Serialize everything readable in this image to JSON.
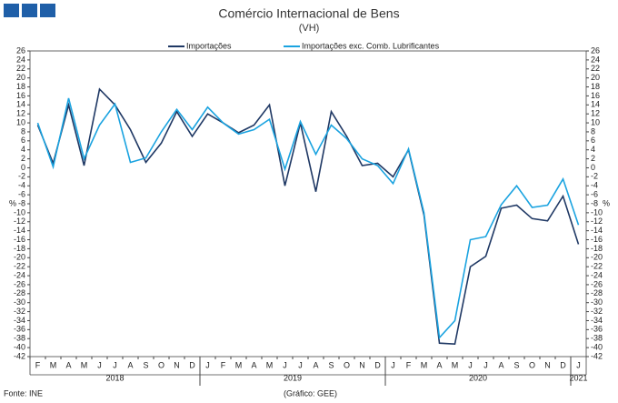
{
  "chart_data": {
    "type": "line",
    "title": "Comércio Internacional de Bens",
    "subtitle": "(VH)",
    "y_label": "%",
    "source": "Fonte: INE",
    "credit": "(Gráfico: GEE)",
    "categories": [
      "F",
      "M",
      "A",
      "M",
      "J",
      "J",
      "A",
      "S",
      "O",
      "N",
      "D",
      "J",
      "F",
      "M",
      "A",
      "M",
      "J",
      "J",
      "A",
      "S",
      "O",
      "N",
      "D",
      "J",
      "F",
      "M",
      "A",
      "M",
      "J",
      "J",
      "A",
      "S",
      "O",
      "N",
      "D",
      "J"
    ],
    "years": [
      "2018",
      "2019",
      "2020",
      "2021"
    ],
    "series": [
      {
        "name": "Importações",
        "color": "#1f3864",
        "values": [
          9.5,
          1,
          14,
          0.5,
          17.5,
          14,
          8.5,
          1.2,
          5.5,
          12.5,
          7,
          12,
          10,
          7.8,
          9.5,
          14,
          -4,
          10,
          -5.3,
          12.5,
          7,
          0.5,
          1,
          -2,
          4,
          -10.5,
          -39,
          -39.2,
          -22,
          -19.7,
          -9,
          -8.3,
          -11.3,
          -11.8,
          -6.3,
          -17
        ]
      },
      {
        "name": "Importações exc. Comb. Lubrificantes",
        "color": "#1aa3e0",
        "values": [
          10,
          0.2,
          15.5,
          2,
          9.5,
          14.2,
          1.2,
          2.2,
          8,
          13,
          8.5,
          13.5,
          10,
          7.5,
          8.5,
          10.8,
          -0.3,
          10.3,
          3,
          9.5,
          6.5,
          2,
          0.5,
          -3.5,
          4.2,
          -10,
          -37.8,
          -34,
          -16,
          -15.3,
          -8.2,
          -4,
          -8.8,
          -8.3,
          -2.5,
          -12.7
        ]
      }
    ],
    "ylim": [
      -42,
      26
    ],
    "yticks": [
      -42,
      -40,
      -38,
      -36,
      -34,
      -32,
      -30,
      -28,
      -26,
      -24,
      -22,
      -20,
      -18,
      -16,
      -14,
      -12,
      -10,
      -8,
      -6,
      -4,
      -2,
      0,
      2,
      4,
      6,
      8,
      10,
      12,
      14,
      16,
      18,
      20,
      22,
      24,
      26
    ],
    "grid": false
  }
}
